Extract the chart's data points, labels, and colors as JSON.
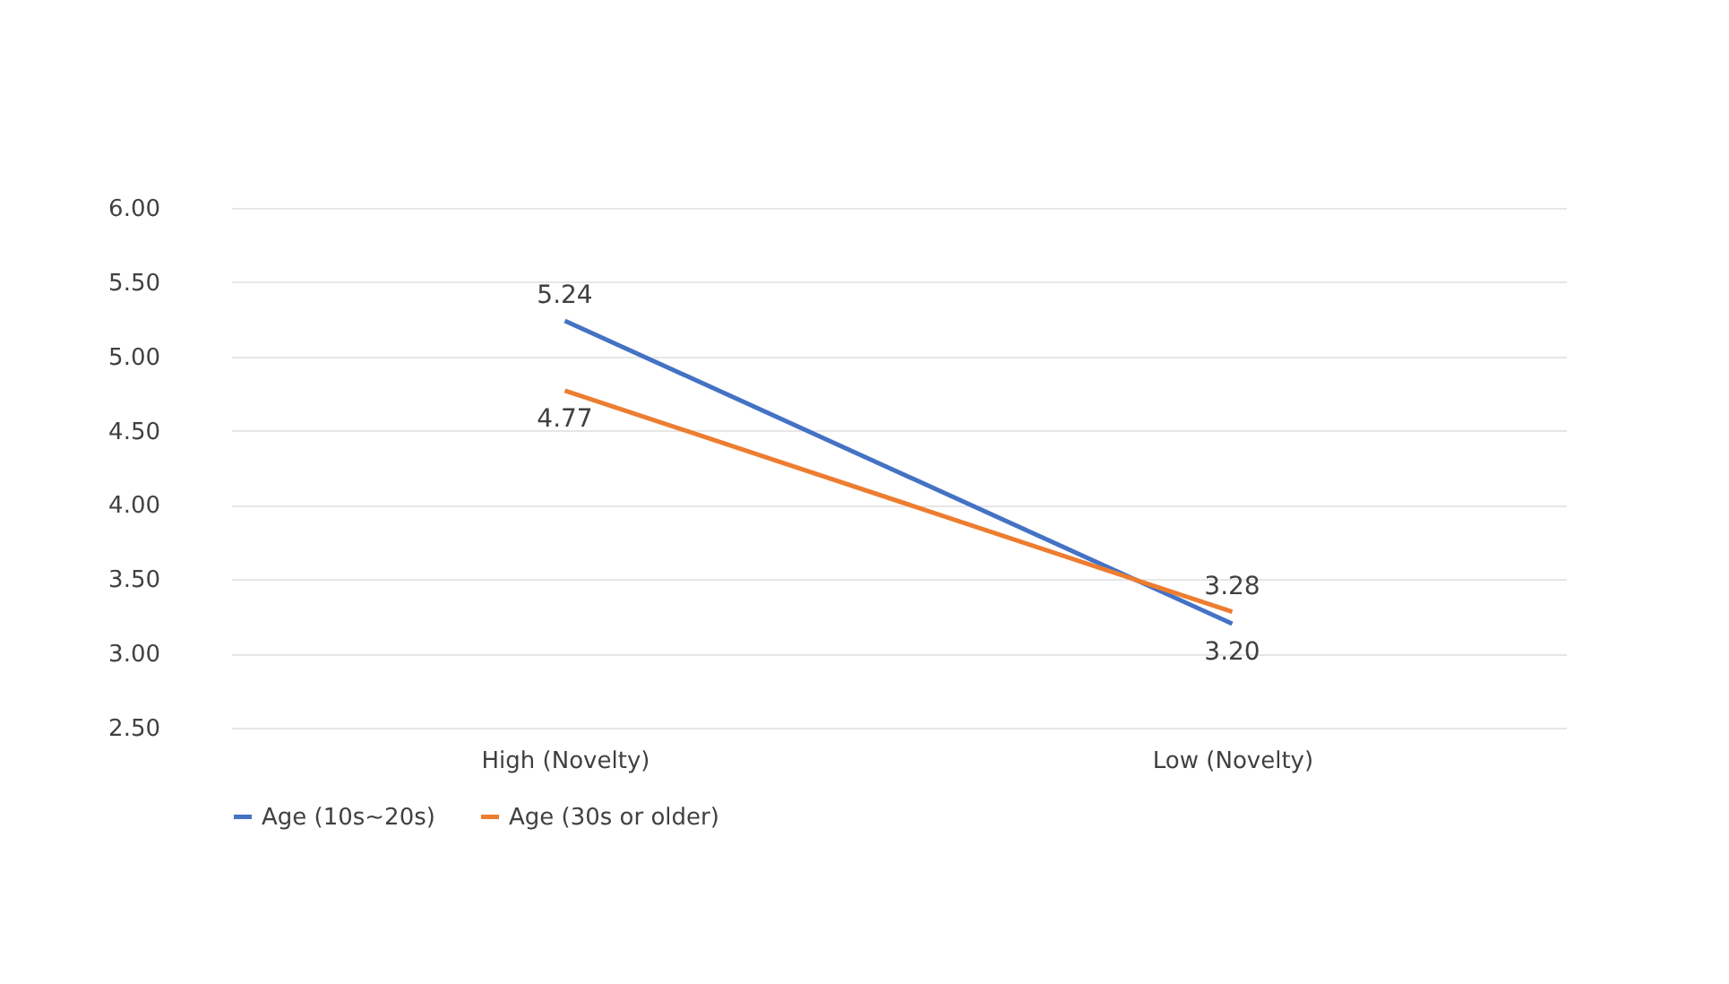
{
  "chart_data": {
    "type": "line",
    "categories": [
      "High (Novelty)",
      "Low (Novelty)"
    ],
    "series": [
      {
        "name": "Age (10s~20s)",
        "color": "#4472c4",
        "values": [
          5.24,
          3.2
        ],
        "value_labels": [
          "5.24",
          "3.20"
        ]
      },
      {
        "name": "Age (30s or older)",
        "color": "#ed7d31",
        "values": [
          4.77,
          3.28
        ],
        "value_labels": [
          "4.77",
          "3.28"
        ]
      }
    ],
    "ylim": [
      2.5,
      6.0
    ],
    "yticks": [
      {
        "value": 2.5,
        "label": "2.50"
      },
      {
        "value": 3.0,
        "label": "3.00"
      },
      {
        "value": 3.5,
        "label": "3.50"
      },
      {
        "value": 4.0,
        "label": "4.00"
      },
      {
        "value": 4.5,
        "label": "4.50"
      },
      {
        "value": 5.0,
        "label": "5.00"
      },
      {
        "value": 5.5,
        "label": "5.50"
      },
      {
        "value": 6.0,
        "label": "6.00"
      }
    ],
    "grid": "y",
    "legend": "bottom",
    "marker": "none",
    "line_style": "solid"
  }
}
